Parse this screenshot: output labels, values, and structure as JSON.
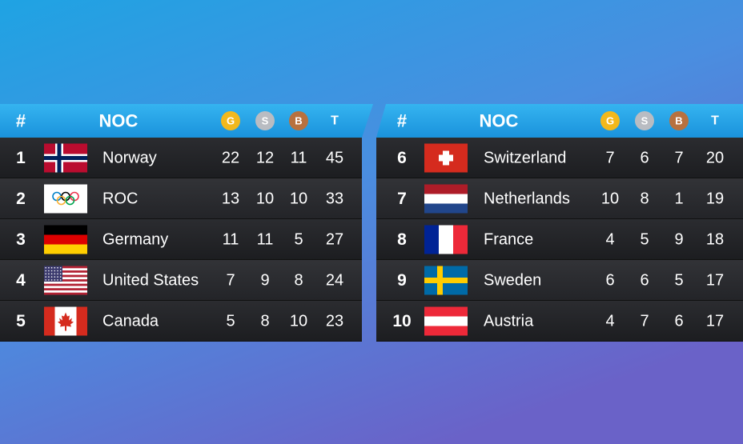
{
  "tables": [
    {
      "header": {
        "rank": "#",
        "noc": "NOC",
        "gold": "G",
        "silver": "S",
        "bronze": "B",
        "total": "T"
      },
      "rows": [
        {
          "rank": 1,
          "noc": "Norway",
          "gold": 22,
          "silver": 12,
          "bronze": 11,
          "total": 45
        },
        {
          "rank": 2,
          "noc": "ROC",
          "gold": 13,
          "silver": 10,
          "bronze": 10,
          "total": 33
        },
        {
          "rank": 3,
          "noc": "Germany",
          "gold": 11,
          "silver": 11,
          "bronze": 5,
          "total": 27
        },
        {
          "rank": 4,
          "noc": "United States",
          "gold": 7,
          "silver": 9,
          "bronze": 8,
          "total": 24
        },
        {
          "rank": 5,
          "noc": "Canada",
          "gold": 5,
          "silver": 8,
          "bronze": 10,
          "total": 23
        }
      ]
    },
    {
      "header": {
        "rank": "#",
        "noc": "NOC",
        "gold": "G",
        "silver": "S",
        "bronze": "B",
        "total": "T"
      },
      "rows": [
        {
          "rank": 6,
          "noc": "Switzerland",
          "gold": 7,
          "silver": 6,
          "bronze": 7,
          "total": 20
        },
        {
          "rank": 7,
          "noc": "Netherlands",
          "gold": 10,
          "silver": 8,
          "bronze": 1,
          "total": 19
        },
        {
          "rank": 8,
          "noc": "France",
          "gold": 4,
          "silver": 5,
          "bronze": 9,
          "total": 18
        },
        {
          "rank": 9,
          "noc": "Sweden",
          "gold": 6,
          "silver": 6,
          "bronze": 5,
          "total": 17
        },
        {
          "rank": 10,
          "noc": "Austria",
          "gold": 4,
          "silver": 7,
          "bronze": 6,
          "total": 17
        }
      ]
    }
  ]
}
